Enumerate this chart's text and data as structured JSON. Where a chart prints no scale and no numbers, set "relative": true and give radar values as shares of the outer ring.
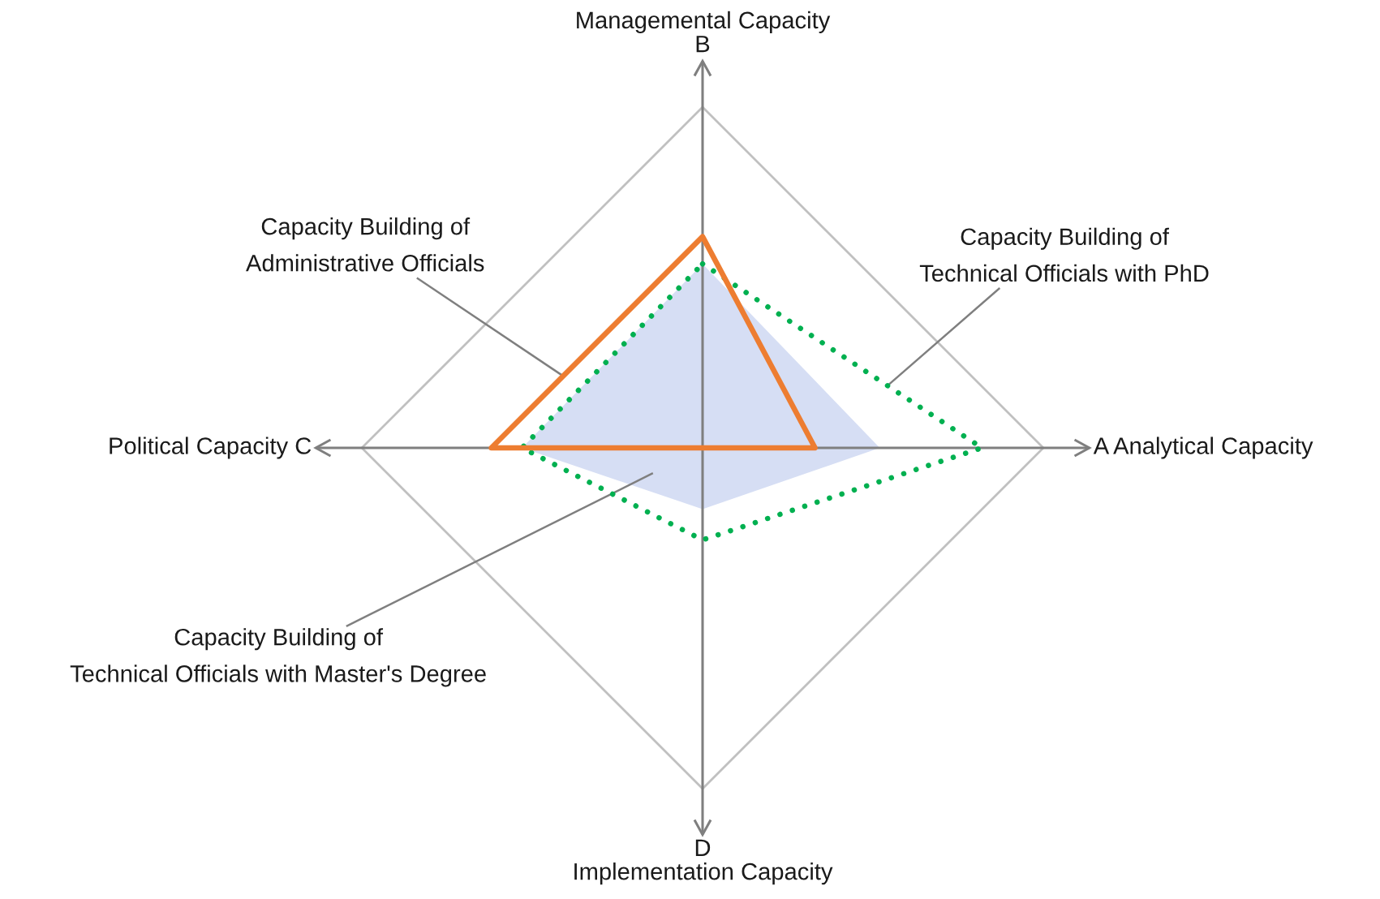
{
  "chart_data": {
    "type": "radar",
    "relative": true,
    "grid": true,
    "categories": [
      "Managemental Capacity\nB",
      "A Analytical Capacity",
      "D\nImplementation Capacity",
      "Political Capacity C"
    ],
    "series": [
      {
        "name": "Capacity Building of\nTechnical Officials with Master's Degree",
        "type": "area",
        "color": "#d6def4",
        "values": [
          0.54,
          0.52,
          0.18,
          0.53
        ]
      },
      {
        "name": "Capacity Building of\nTechnical Officials with PhD",
        "color": "#00b050",
        "line_style": "dotted",
        "values": [
          0.54,
          0.82,
          0.27,
          0.53
        ]
      },
      {
        "name": "Capacity Building of\nAdministrative Officials",
        "color": "#ed7d31",
        "line_style": "solid",
        "values": [
          0.62,
          0.33,
          0,
          0.62
        ]
      }
    ]
  }
}
